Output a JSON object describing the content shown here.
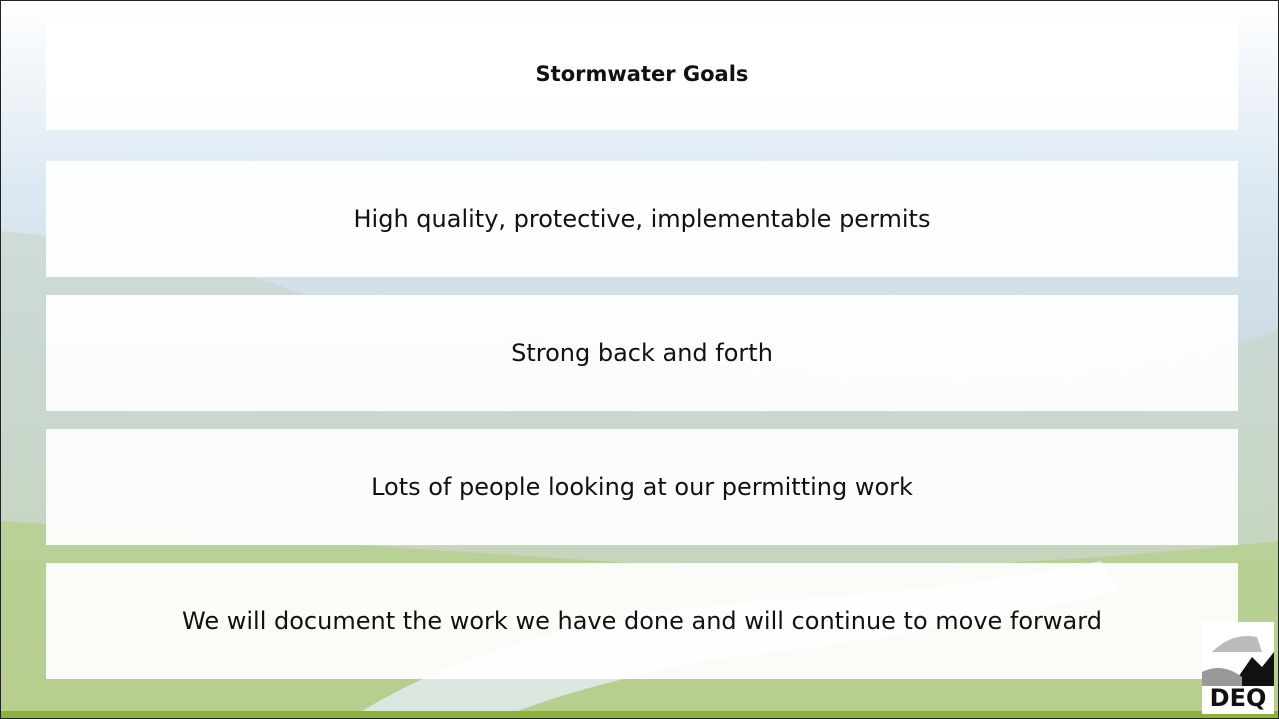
{
  "title": "Stormwater Goals",
  "items": [
    "High quality, protective, implementable permits",
    "Strong back and forth",
    "Lots of people looking at our permitting work",
    "We will document the work we have done and will continue to move forward"
  ],
  "logo": "DEQ"
}
